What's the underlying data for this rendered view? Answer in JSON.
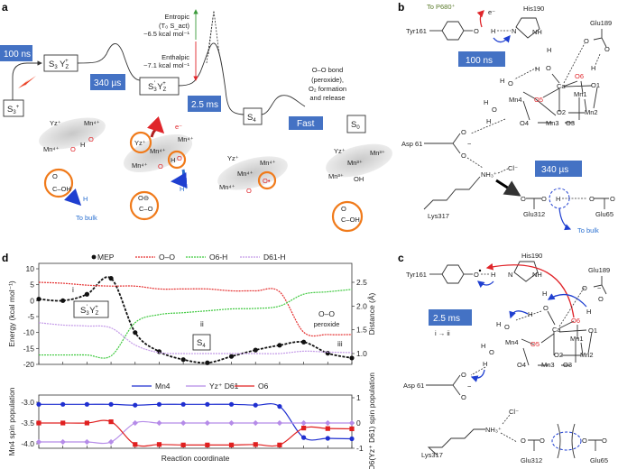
{
  "panel_labels": {
    "a": "a",
    "b": "b",
    "c": "c",
    "d": "d"
  },
  "panel_a": {
    "times": {
      "t1": "100 ns",
      "t2": "340 µs",
      "t3": "2.5 ms",
      "t4": "Fast"
    },
    "states": {
      "s3plus": {
        "s": "S",
        "sub": "3",
        "sup": "+"
      },
      "s3yz": {
        "s": "S",
        "sub": "3",
        "y": " Y",
        "z": "Z",
        "p": "+"
      },
      "s3pyz": {
        "s": "S",
        "sub": "3",
        "prime": "′",
        "y": " Y",
        "z": "Z",
        "p": "+"
      },
      "s4": {
        "s": "S",
        "sub": "4"
      },
      "s0": {
        "s": "S",
        "sub": "0"
      }
    },
    "entropic": [
      "Entropic",
      "(T₀ S_act)",
      "~6.5 kcal mol⁻¹"
    ],
    "enthalpic": [
      "Enthalpic",
      "~7.1 kcal mol⁻¹"
    ],
    "oo_note": [
      "O–O bond",
      "(peroxide),",
      "O₂ formation",
      "and release"
    ],
    "species": {
      "yz": "Yz⁺",
      "mn4": "Mn⁴⁺",
      "mn3": "Mn³⁺",
      "o": "O",
      "h": "H",
      "oh": "OH",
      "o_rad": "O•",
      "cooh": "C–OH",
      "coo": "C–O",
      "o_minus": "O⊖",
      "h_plus": "H⁺",
      "e_minus": "e⁻",
      "to_bulk": "To bulk"
    }
  },
  "panel_b": {
    "tyr": "Tyr161",
    "his": "His190",
    "to_p680": "To P680⁺",
    "e_minus": "e⁻",
    "glu189": "Glu189",
    "time1": "100 ns",
    "time2": "340 µs",
    "atoms": {
      "o": "O",
      "h": "H",
      "n": "N",
      "nh": "NH",
      "ca": "Ca",
      "o6": "O6",
      "o1": "O1",
      "mn1": "Mn1",
      "mn2": "Mn2",
      "o2": "O2",
      "o3": "O3",
      "mn3": "Mn3",
      "o4": "O4",
      "mn4": "Mn4",
      "o5": "O5",
      "minus": "−",
      "nh3": "NH₃⁺",
      "cl": "Cl⁻"
    },
    "asp": "Asp 61",
    "lys": "Lys317",
    "glu312": "Glu312",
    "glu65": "Glu65",
    "to_bulk": "To bulk"
  },
  "panel_c": {
    "tyr": "Tyr161",
    "his": "His190",
    "glu189": "Glu189",
    "time": "2.5 ms",
    "step": "i → ii",
    "asp": "Asp 61",
    "lys": "Lys317",
    "glu312": "Glu312",
    "glu65": "Glu65"
  },
  "chart_data": [
    {
      "type": "line",
      "x": [
        0,
        1,
        2,
        3,
        4,
        5,
        6,
        7,
        8,
        9,
        10,
        11,
        12,
        13
      ],
      "xlabel": "",
      "ylabel": "Energy (kcal mol⁻¹)",
      "ylabel_right": "Distance (Å)",
      "ylim": [
        -20,
        10
      ],
      "ylim_right": [
        0.8,
        2.75
      ],
      "yticks": [
        10,
        5,
        0,
        -5,
        -10,
        -15,
        -20
      ],
      "yticks_right": [
        2.5,
        2.0,
        1.5,
        1.0
      ],
      "series": [
        {
          "name": "MEP",
          "axis": "left",
          "color": "#111111",
          "values": [
            0.5,
            0,
            2,
            7,
            -10,
            -16,
            -18.5,
            -19.5,
            -17.5,
            -15.5,
            -14,
            -13,
            -16.5,
            -18
          ]
        },
        {
          "name": "O–O",
          "axis": "right",
          "color": "#e53030",
          "values": [
            2.5,
            2.48,
            2.44,
            2.42,
            2.42,
            2.36,
            2.36,
            2.36,
            2.32,
            2.32,
            2.3,
            1.45,
            1.4,
            1.4
          ]
        },
        {
          "name": "O6-H",
          "axis": "right",
          "color": "#3fc93f",
          "values": [
            0.97,
            0.97,
            0.97,
            0.95,
            1.65,
            1.82,
            1.86,
            1.9,
            1.94,
            1.95,
            2.0,
            2.25,
            2.3,
            2.35
          ]
        },
        {
          "name": "D61-H",
          "axis": "right",
          "color": "#c49ae8",
          "values": [
            1.65,
            1.6,
            1.58,
            1.54,
            1.18,
            1.02,
            1.0,
            1.0,
            1.0,
            1.0,
            1.0,
            1.05,
            1.03,
            1.02
          ]
        }
      ],
      "annotations": {
        "i": "i",
        "ii": "ii",
        "iii": "iii",
        "oo1": "O–O",
        "oo2": "peroxide",
        "s3": {
          "s": "S",
          "sub": "3",
          "prime": "′",
          "y": " Y",
          "z": "Z",
          "p": "+"
        },
        "s4": {
          "s": "S",
          "sub": "4"
        }
      }
    },
    {
      "type": "line",
      "x": [
        0,
        1,
        2,
        3,
        4,
        5,
        6,
        7,
        8,
        9,
        10,
        11,
        12,
        13
      ],
      "xlabel": "Reaction coordinate",
      "ylabel": "Mn4 spin population",
      "ylabel_right": "O6(Yz⁺ D61) spin population",
      "ylim": [
        -4.1,
        -2.9
      ],
      "ylim_right": [
        -1,
        1
      ],
      "yticks": [
        -3.0,
        -3.5,
        -4.0
      ],
      "yticks_right": [
        1,
        0,
        -1
      ],
      "series": [
        {
          "name": "Mn4",
          "axis": "left",
          "color": "#1f2fd0",
          "marker": "circle",
          "values": [
            -3.05,
            -3.05,
            -3.05,
            -3.05,
            -3.07,
            -3.05,
            -3.05,
            -3.05,
            -3.05,
            -3.07,
            -3.1,
            -3.85,
            -3.87,
            -3.88
          ]
        },
        {
          "name": "Yz⁺ D61",
          "axis": "right",
          "color": "#b58be8",
          "marker": "diamond",
          "values": [
            -0.75,
            -0.75,
            -0.75,
            -0.75,
            0,
            0,
            0,
            0,
            0,
            0,
            0,
            0,
            0,
            0
          ]
        },
        {
          "name": "O6",
          "axis": "right",
          "color": "#e02020",
          "marker": "square",
          "values": [
            0,
            0,
            0,
            0.05,
            -0.85,
            -0.85,
            -0.87,
            -0.87,
            -0.87,
            -0.85,
            -0.87,
            -0.2,
            -0.22,
            -0.23
          ]
        }
      ]
    }
  ]
}
